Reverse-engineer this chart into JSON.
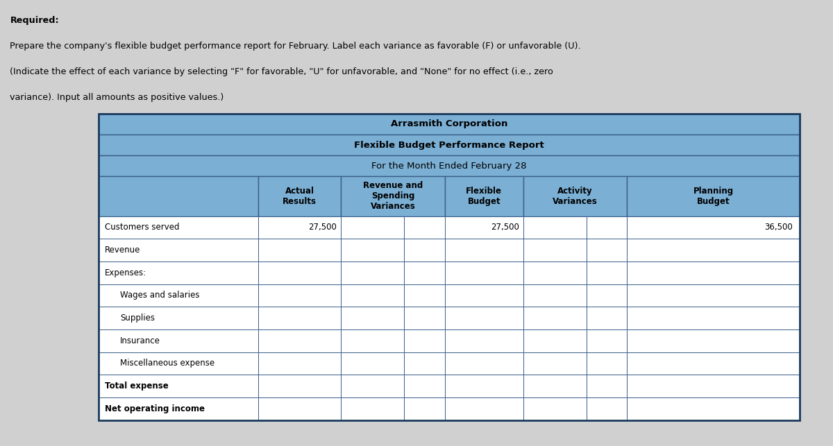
{
  "title1": "Arrasmith Corporation",
  "title2": "Flexible Budget Performance Report",
  "title3": "For the Month Ended February 28",
  "title_bg": "#7bafd4",
  "header_bg": "#7bafd4",
  "white": "#ffffff",
  "border_color": "#3a5f8a",
  "fig_bg": "#d0d0d0",
  "row_labels": [
    "Customers served",
    "Revenue",
    "Expenses:",
    "  Wages and salaries",
    "  Supplies",
    "  Insurance",
    "  Miscellaneous expense",
    "Total expense",
    "Net operating income"
  ],
  "customers_actual": "27,500",
  "customers_flex": "27,500",
  "customers_plan": "36,500",
  "instruction_line1": "Required:",
  "instruction_line2": "Prepare the company's flexible budget performance report for February. Label each variance as favorable (F) or unfavorable (U).",
  "instruction_line3": "(Indicate the effect of each variance by selecting \"F\" for favorable, \"U\" for unfavorable, and \"None\" for no effect (i.e., zero",
  "instruction_line4": "variance). Input all amounts as positive values.)",
  "col_header_actual": "Actual\nResults",
  "col_header_rev_spend": "Revenue and\nSpending\nVariances",
  "col_header_flex": "Flexible\nBudget",
  "col_header_activity": "Activity\nVariances",
  "col_header_plan": "Planning\nBudget"
}
